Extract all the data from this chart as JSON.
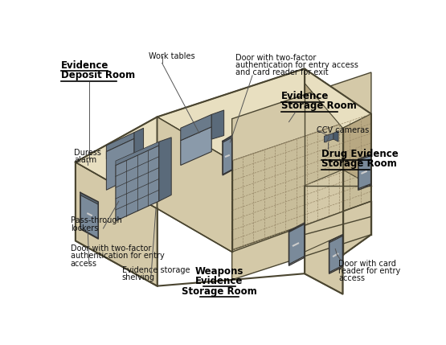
{
  "bg_color": "#ffffff",
  "wall_color": "#d4c9a8",
  "wall_dark": "#b8a882",
  "wall_light": "#e8dfc0",
  "floor_color": "#c8bd9a",
  "floor_grid_color": "#9a8a6a",
  "door_color": "#7a8a9a",
  "door_dark": "#5a6a7a",
  "locker_color": "#7a8a9a",
  "line_color": "#4a4530",
  "annotation_color": "#111111",
  "labels": {
    "evidence_deposit_1": "Evidence",
    "evidence_deposit_2": "Deposit Room",
    "evidence_storage_1": "Evidence",
    "evidence_storage_2": "Storage Room",
    "drug_evidence_1": "Drug Evidence",
    "drug_evidence_2": "Storage Room",
    "weapons_1": "Weapons",
    "weapons_2": "Evidence",
    "weapons_3": "Storage Room",
    "work_tables": "Work tables",
    "door_two_factor_1": "Door with two-factor",
    "door_two_factor_2": "authentication for entry access",
    "door_two_factor_3": "and card reader for exit",
    "duress_1": "Duress",
    "duress_2": "alarm",
    "ccv": "CCV cameras",
    "pass_1": "Pass-through",
    "pass_2": "lockers",
    "door_left_1": "Door with two-factor",
    "door_left_2": "authentication for entry",
    "door_left_3": "access",
    "shelving_1": "Evidence storage",
    "shelving_2": "shelving",
    "card_1": "Door with card",
    "card_2": "reader for entry",
    "card_3": "access"
  }
}
